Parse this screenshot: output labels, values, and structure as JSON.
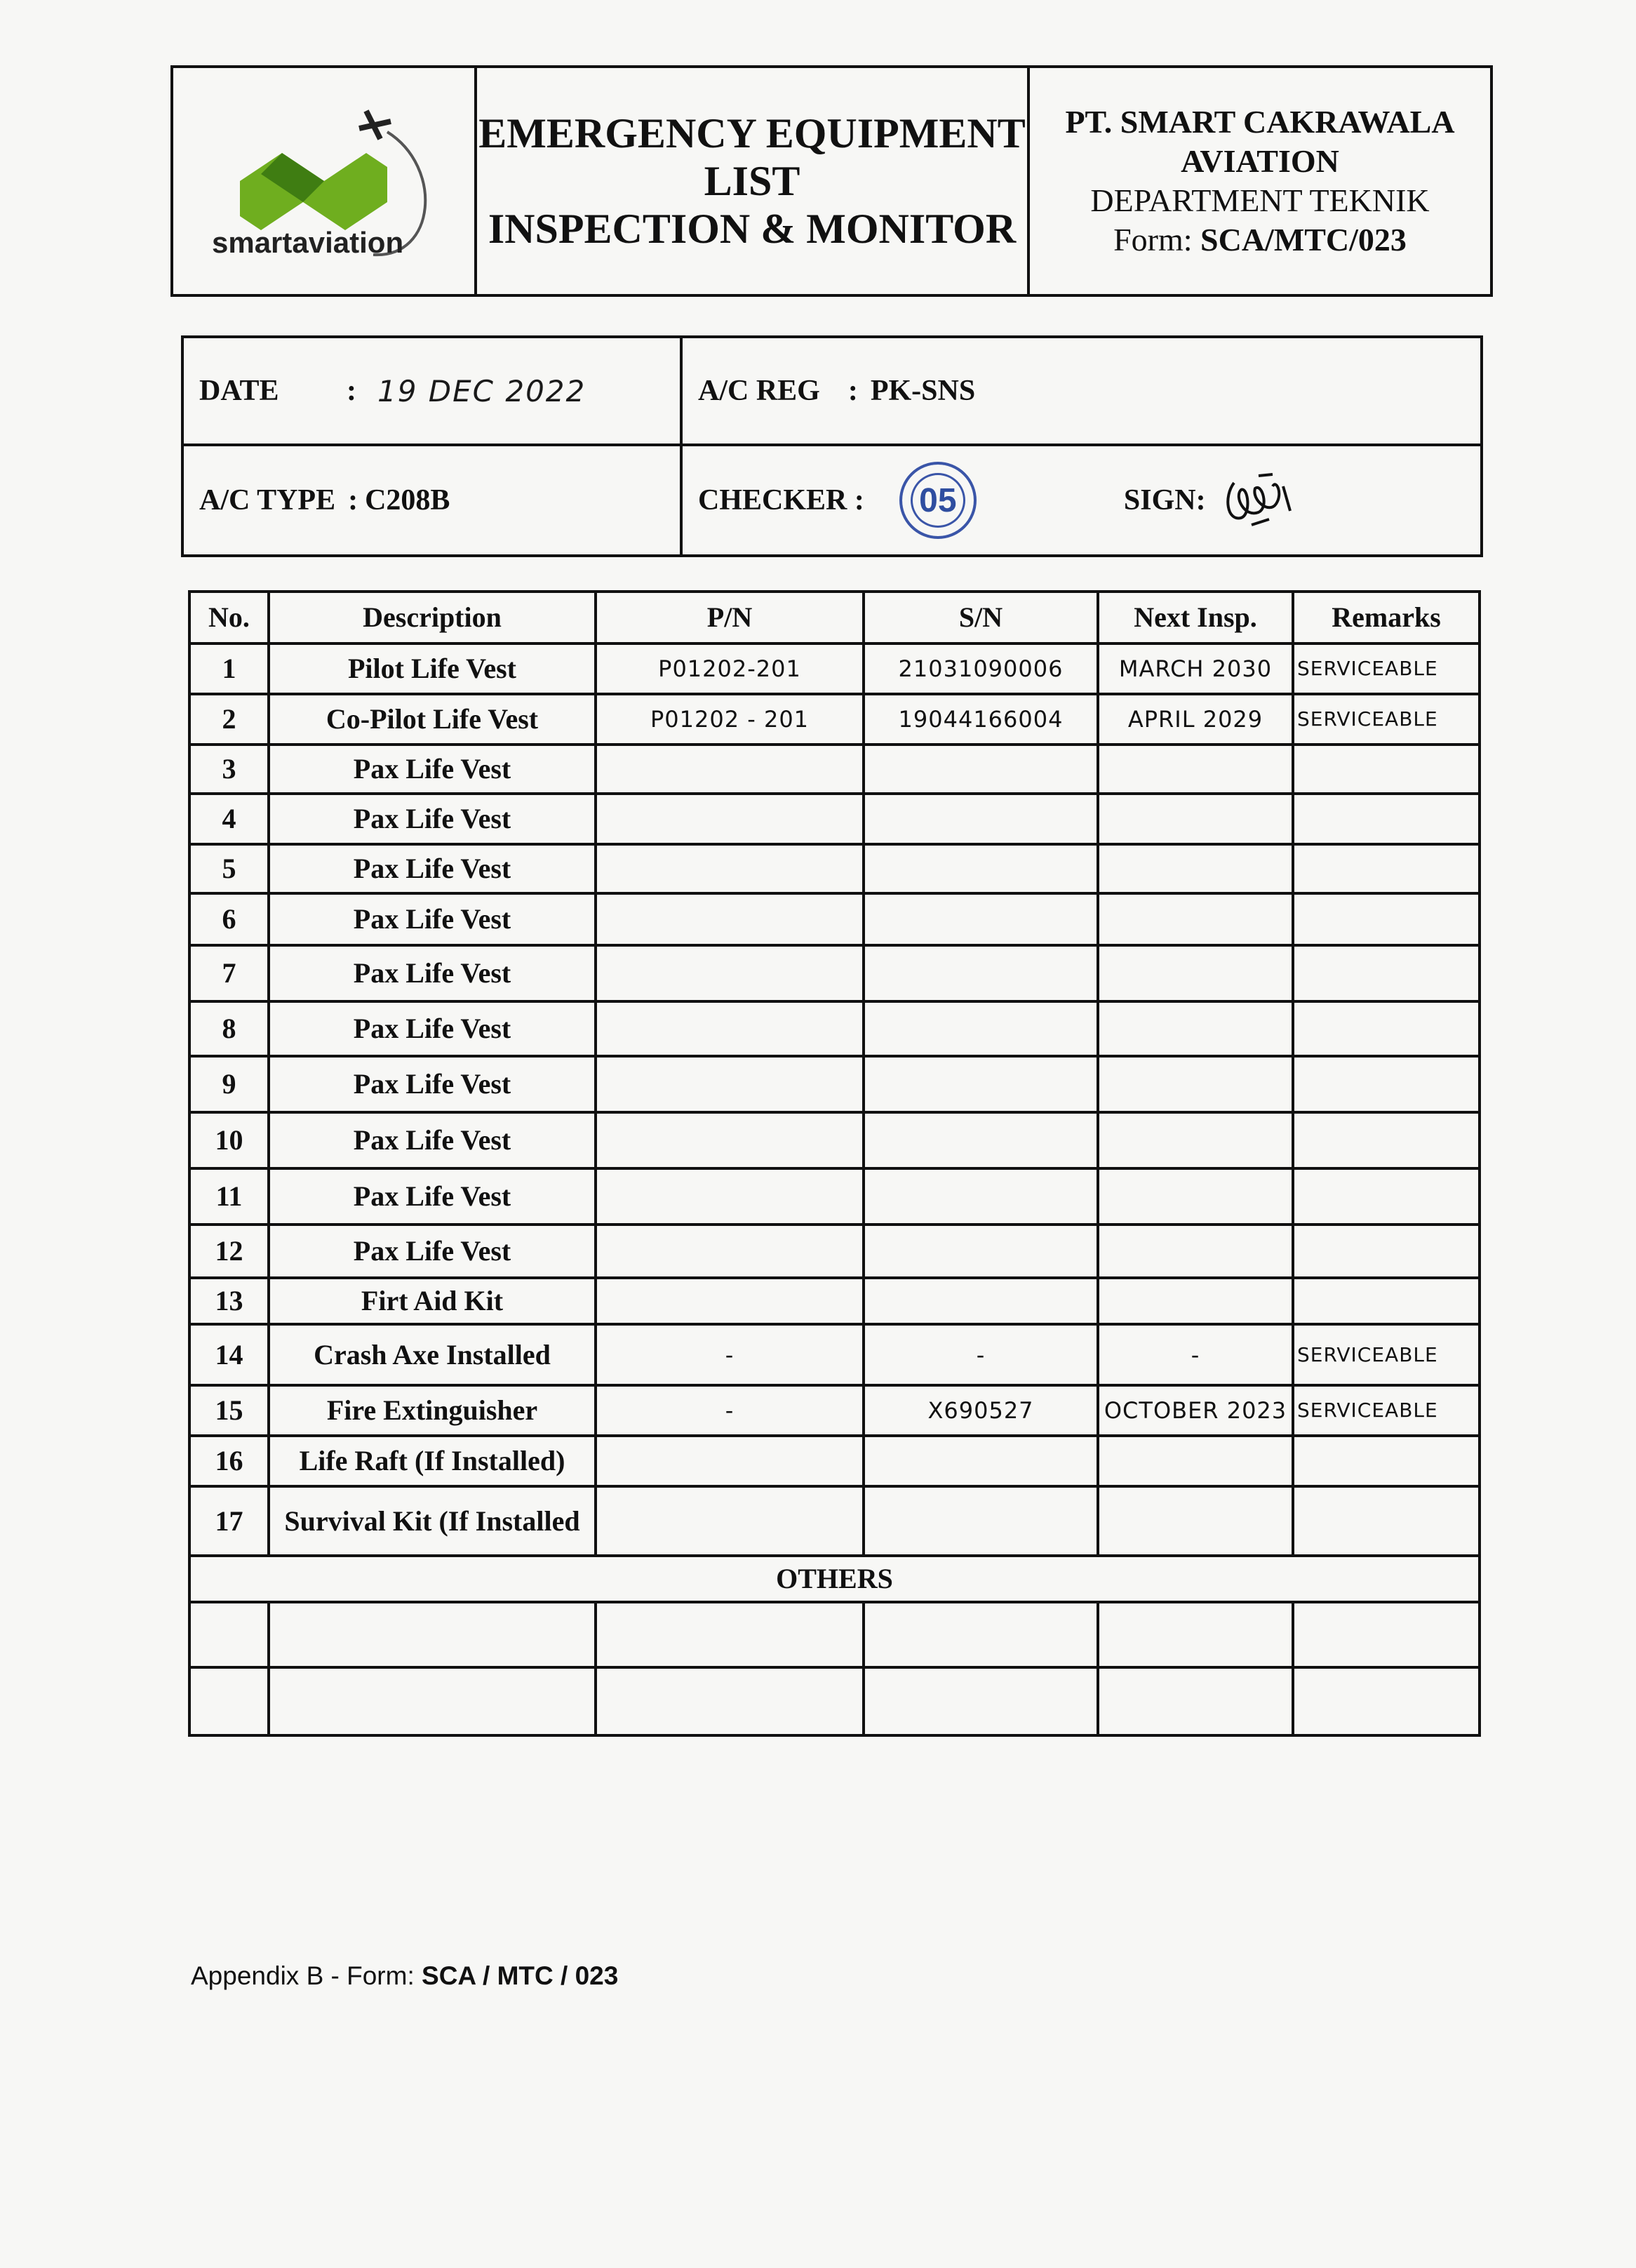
{
  "header": {
    "logo_text": "smartaviation",
    "title_lines": [
      "EMERGENCY EQUIPMENT",
      "LIST",
      "INSPECTION & MONITOR"
    ],
    "company_line1": "PT. SMART CAKRAWALA",
    "company_line2": "AVIATION",
    "department": "DEPARTMENT TEKNIK",
    "form_label": "Form: ",
    "form_no": "SCA/MTC/023"
  },
  "info": {
    "date_label": "DATE",
    "date_sep": ":",
    "date_value": "19 DEC 2022",
    "acreg_label": "A/C REG",
    "acreg_sep": ":",
    "acreg_value": "PK-SNS",
    "actype_label": "A/C TYPE",
    "actype_sep": ":",
    "actype_value": "C208B",
    "checker_label": "CHECKER :",
    "checker_stamp": "05",
    "sign_label": "SIGN:"
  },
  "table": {
    "headers": [
      "No.",
      "Description",
      "P/N",
      "S/N",
      "Next Insp.",
      "Remarks"
    ],
    "rows": [
      [
        "1",
        "Pilot Life Vest",
        "P01202-201",
        "21031090006",
        "MARCH 2030",
        "SERVICEABLE"
      ],
      [
        "2",
        "Co-Pilot Life Vest",
        "P01202 - 201",
        "19044166004",
        "APRIL 2029",
        "SERVICEABLE"
      ],
      [
        "3",
        "Pax Life Vest",
        "",
        "",
        "",
        ""
      ],
      [
        "4",
        "Pax Life Vest",
        "",
        "",
        "",
        ""
      ],
      [
        "5",
        "Pax Life Vest",
        "",
        "",
        "",
        ""
      ],
      [
        "6",
        "Pax Life Vest",
        "",
        "",
        "",
        ""
      ],
      [
        "7",
        "Pax Life Vest",
        "",
        "",
        "",
        ""
      ],
      [
        "8",
        "Pax Life Vest",
        "",
        "",
        "",
        ""
      ],
      [
        "9",
        "Pax Life Vest",
        "",
        "",
        "",
        ""
      ],
      [
        "10",
        "Pax Life Vest",
        "",
        "",
        "",
        ""
      ],
      [
        "11",
        "Pax Life Vest",
        "",
        "",
        "",
        ""
      ],
      [
        "12",
        "Pax Life Vest",
        "",
        "",
        "",
        ""
      ],
      [
        "13",
        "Firt Aid Kit",
        "",
        "",
        "",
        ""
      ],
      [
        "14",
        "Crash Axe Installed",
        "-",
        "-",
        "-",
        "SERVICEABLE"
      ],
      [
        "15",
        "Fire Extinguisher",
        "-",
        "X690527",
        "OCTOBER 2023",
        "SERVICEABLE"
      ],
      [
        "16",
        "Life Raft (If Installed)",
        "",
        "",
        "",
        ""
      ],
      [
        "17",
        "Survival Kit (If Installed",
        "",
        "",
        "",
        ""
      ]
    ],
    "others_label": "OTHERS"
  },
  "footer": {
    "prefix": "Appendix B -  Form:  ",
    "form": "SCA / MTC / 023"
  },
  "colors": {
    "logo_green": "#6fae1f",
    "stamp_blue": "#2f4ea0"
  }
}
